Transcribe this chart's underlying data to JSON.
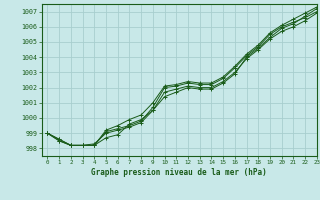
{
  "title": "Graphe pression niveau de la mer (hPa)",
  "background_color": "#c8e8e8",
  "grid_color": "#a8cece",
  "line_color": "#1a5c1a",
  "xlim": [
    -0.5,
    23
  ],
  "ylim": [
    997.5,
    1007.5
  ],
  "yticks": [
    998,
    999,
    1000,
    1001,
    1002,
    1003,
    1004,
    1005,
    1006,
    1007
  ],
  "xticks": [
    0,
    1,
    2,
    3,
    4,
    5,
    6,
    7,
    8,
    9,
    10,
    11,
    12,
    13,
    14,
    15,
    16,
    17,
    18,
    19,
    20,
    21,
    22,
    23
  ],
  "line1": [
    999.0,
    998.6,
    998.2,
    998.2,
    998.2,
    999.1,
    999.3,
    999.5,
    999.8,
    1000.7,
    1002.0,
    1002.1,
    1002.3,
    1002.2,
    1002.2,
    1002.6,
    1003.3,
    1004.1,
    1004.7,
    1005.5,
    1006.0,
    1006.3,
    1006.6,
    1007.0
  ],
  "line2": [
    999.0,
    998.6,
    998.2,
    998.2,
    998.3,
    999.0,
    999.2,
    999.4,
    999.7,
    1000.5,
    1001.7,
    1001.9,
    1002.1,
    1002.0,
    1002.0,
    1002.4,
    1003.0,
    1003.9,
    1004.5,
    1005.2,
    1005.7,
    1006.0,
    1006.4,
    1006.9
  ],
  "line3": [
    999.0,
    998.5,
    998.2,
    998.2,
    998.2,
    999.2,
    999.5,
    999.9,
    1000.2,
    1001.0,
    1002.1,
    1002.2,
    1002.4,
    1002.3,
    1002.3,
    1002.7,
    1003.4,
    1004.2,
    1004.8,
    1005.6,
    1006.1,
    1006.5,
    1006.9,
    1007.3
  ],
  "line4": [
    999.0,
    998.5,
    998.2,
    998.2,
    998.2,
    998.7,
    998.9,
    999.6,
    999.9,
    1000.5,
    1001.4,
    1001.7,
    1002.0,
    1001.9,
    1001.9,
    1002.3,
    1002.9,
    1004.0,
    1004.6,
    1005.3,
    1005.9,
    1006.2,
    1006.7,
    1007.2
  ]
}
